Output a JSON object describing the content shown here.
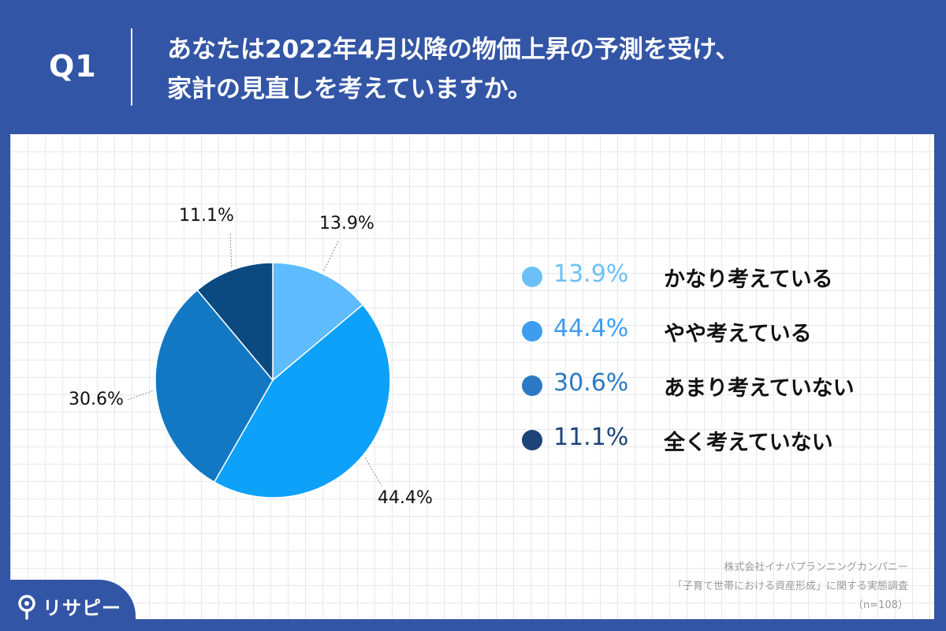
{
  "header": {
    "q_label": "Q1",
    "title_line1": "あなたは2022年4月以降の物価上昇の予測を受け、",
    "title_line2": "家計の見直しを考えていますか。"
  },
  "chart_data": {
    "type": "pie",
    "slices": [
      {
        "label": "かなり考えている",
        "value": 13.9,
        "display": "13.9%",
        "color": "#5ebcff"
      },
      {
        "label": "やや考えている",
        "value": 44.4,
        "display": "44.4%",
        "color": "#0da1fa"
      },
      {
        "label": "あまり考えていない",
        "value": 30.6,
        "display": "30.6%",
        "color": "#1278c4"
      },
      {
        "label": "全く考えていない",
        "value": 11.1,
        "display": "11.1%",
        "color": "#0b4a80"
      }
    ],
    "start": "top (12 o'clock)",
    "direction": "clockwise",
    "legend_position": "right"
  },
  "legend": {
    "items": [
      {
        "pct": "13.9%",
        "label": "かなり考えている",
        "dot_color": "#6cc0f7",
        "text_color": "#6cc0f7"
      },
      {
        "pct": "44.4%",
        "label": "やや考えている",
        "dot_color": "#3d9df0",
        "text_color": "#3d9df0"
      },
      {
        "pct": "30.6%",
        "label": "あまり考えていない",
        "dot_color": "#2b79c4",
        "text_color": "#2b79c4"
      },
      {
        "pct": "11.1%",
        "label": "全く考えていない",
        "dot_color": "#1c4476",
        "text_color": "#1c4476"
      }
    ]
  },
  "source": {
    "line1": "株式会社イナバプランニングカンパニー",
    "line2": "「子育て世帯における資産形成」に関する実態調査",
    "line3": "（n=108）"
  },
  "logo": {
    "text": "リサピー",
    "icon": "pin-icon"
  },
  "colors": {
    "header_bg": "#3355a6",
    "panel_bg": "#ffffff",
    "grid": "#e6e9ee"
  }
}
